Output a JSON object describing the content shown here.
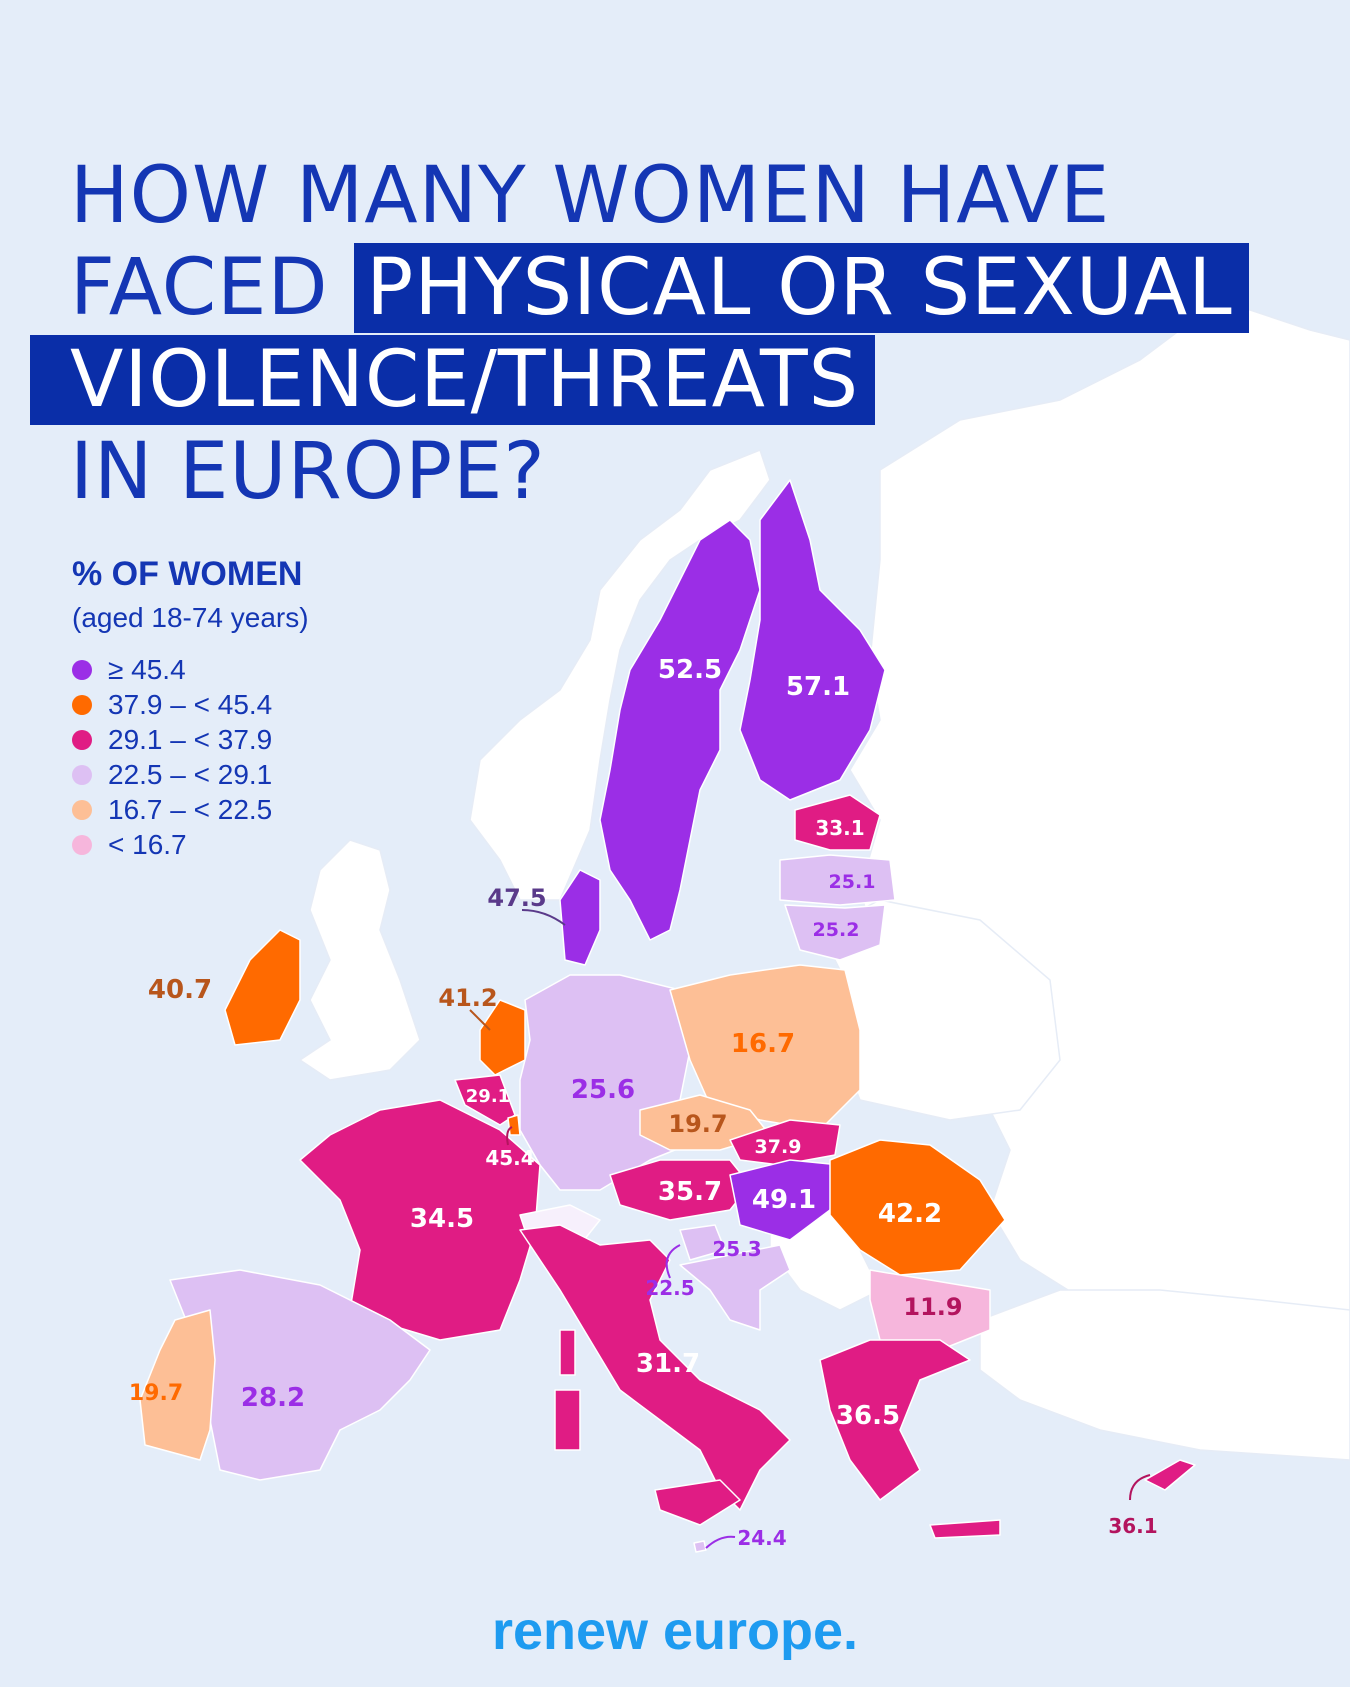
{
  "title": {
    "line1": "HOW MANY WOMEN HAVE",
    "line2_plain": "FACED ",
    "line2_highlight": "PHYSICAL OR SEXUAL",
    "line3_highlight": "VIOLENCE/THREATS",
    "line4": "IN EUROPE?"
  },
  "legend": {
    "title": "% OF WOMEN",
    "subtitle": "(aged 18-74 years)",
    "items": [
      {
        "label": "≥ 45.4",
        "color": "#9b2ee6"
      },
      {
        "label": "37.9 – < 45.4",
        "color": "#ff6a00"
      },
      {
        "label": "29.1 – < 37.9",
        "color": "#e01c84"
      },
      {
        "label": "22.5 – < 29.1",
        "color": "#ddc0f3"
      },
      {
        "label": "16.7 – < 22.5",
        "color": "#fdbf96"
      },
      {
        "label": "< 16.7",
        "color": "#f6b6dc"
      }
    ]
  },
  "colors": {
    "background": "#e4edf9",
    "land_non_eu": "#ffffff",
    "border": "#c8d4ea",
    "purple": "#9b2ee6",
    "orange": "#ff6a00",
    "magenta": "#e01c84",
    "lavender": "#ddc0f3",
    "peach": "#fdbf96",
    "pink": "#f6b6dc",
    "brand": "#1e9bf0"
  },
  "values": {
    "sweden": "52.5",
    "finland": "57.1",
    "estonia": "33.1",
    "latvia": "25.1",
    "lithuania": "25.2",
    "denmark": "47.5",
    "ireland": "40.7",
    "netherlands": "41.2",
    "belgium": "29.1",
    "luxembourg": "45.4",
    "germany": "25.6",
    "poland": "16.7",
    "czechia": "19.7",
    "slovakia": "37.9",
    "austria": "35.7",
    "hungary": "49.1",
    "romania": "42.2",
    "slovenia": "25.3",
    "croatia": "22.5",
    "bulgaria": "11.9",
    "france": "34.5",
    "spain": "28.2",
    "portugal": "19.7",
    "italy": "31.7",
    "greece": "36.5",
    "malta": "24.4",
    "cyprus": "36.1"
  },
  "brand": "renew europe."
}
